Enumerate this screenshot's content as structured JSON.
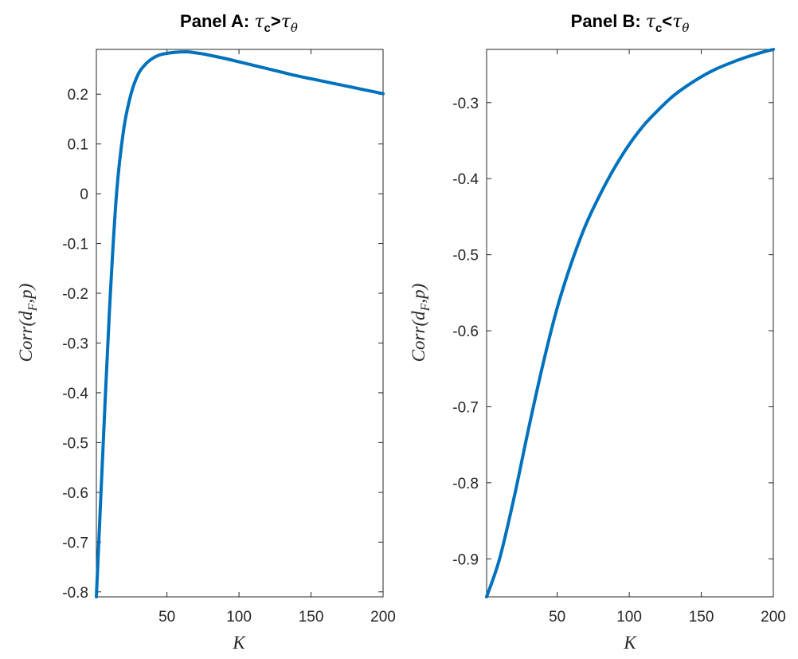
{
  "chart_data": [
    {
      "type": "line",
      "title": {
        "prefix": "Panel A: ",
        "tau1": "τ",
        "sub1": "c",
        "relation": ">",
        "tau2": "τ",
        "sub2": "θ"
      },
      "xlabel": "K",
      "ylabel": {
        "main": "Corr(d",
        "sub": "F",
        "rest": ",p)"
      },
      "xlim": [
        1,
        200
      ],
      "ylim": [
        -0.81,
        0.29
      ],
      "xticks": [
        50,
        100,
        150,
        200
      ],
      "xtick_labels": [
        "50",
        "100",
        "150",
        "200"
      ],
      "yticks": [
        -0.8,
        -0.7,
        -0.6,
        -0.5,
        -0.4,
        -0.3,
        -0.2,
        -0.1,
        0,
        0.1,
        0.2
      ],
      "ytick_labels": [
        "-0.8",
        "-0.7",
        "-0.6",
        "-0.5",
        "-0.4",
        "-0.3",
        "-0.2",
        "-0.1",
        "0",
        "0.1",
        "0.2"
      ],
      "grid": false,
      "series_color": "#0072BD",
      "series": [
        {
          "x": [
            1,
            5,
            10,
            15,
            20,
            25,
            30,
            35,
            40,
            45,
            50,
            55,
            60,
            65,
            70,
            75,
            80,
            90,
            100,
            110,
            120,
            130,
            140,
            150,
            160,
            170,
            180,
            190,
            200
          ],
          "y": [
            -0.81,
            -0.55,
            -0.24,
            0.0,
            0.13,
            0.2,
            0.24,
            0.26,
            0.272,
            0.279,
            0.282,
            0.284,
            0.285,
            0.285,
            0.283,
            0.281,
            0.278,
            0.272,
            0.265,
            0.258,
            0.251,
            0.244,
            0.237,
            0.231,
            0.225,
            0.219,
            0.213,
            0.207,
            0.201
          ]
        }
      ]
    },
    {
      "type": "line",
      "title": {
        "prefix": "Panel B: ",
        "tau1": "τ",
        "sub1": "c",
        "relation": "<",
        "tau2": "τ",
        "sub2": "θ"
      },
      "xlabel": "K",
      "ylabel": {
        "main": "Corr(d",
        "sub": "F",
        "rest": ",p)"
      },
      "xlim": [
        1,
        200
      ],
      "ylim": [
        -0.95,
        -0.23
      ],
      "xticks": [
        50,
        100,
        150,
        200
      ],
      "xtick_labels": [
        "50",
        "100",
        "150",
        "200"
      ],
      "yticks": [
        -0.9,
        -0.8,
        -0.7,
        -0.6,
        -0.5,
        -0.4,
        -0.3
      ],
      "ytick_labels": [
        "-0.9",
        "-0.8",
        "-0.7",
        "-0.6",
        "-0.5",
        "-0.4",
        "-0.3"
      ],
      "grid": false,
      "series_color": "#0072BD",
      "series": [
        {
          "x": [
            1,
            10,
            20,
            30,
            40,
            50,
            60,
            70,
            80,
            90,
            100,
            110,
            120,
            130,
            140,
            150,
            160,
            170,
            180,
            190,
            200
          ],
          "y": [
            -0.95,
            -0.9,
            -0.82,
            -0.73,
            -0.645,
            -0.57,
            -0.51,
            -0.46,
            -0.42,
            -0.385,
            -0.355,
            -0.33,
            -0.31,
            -0.292,
            -0.278,
            -0.266,
            -0.256,
            -0.248,
            -0.241,
            -0.235,
            -0.23
          ]
        }
      ]
    }
  ]
}
